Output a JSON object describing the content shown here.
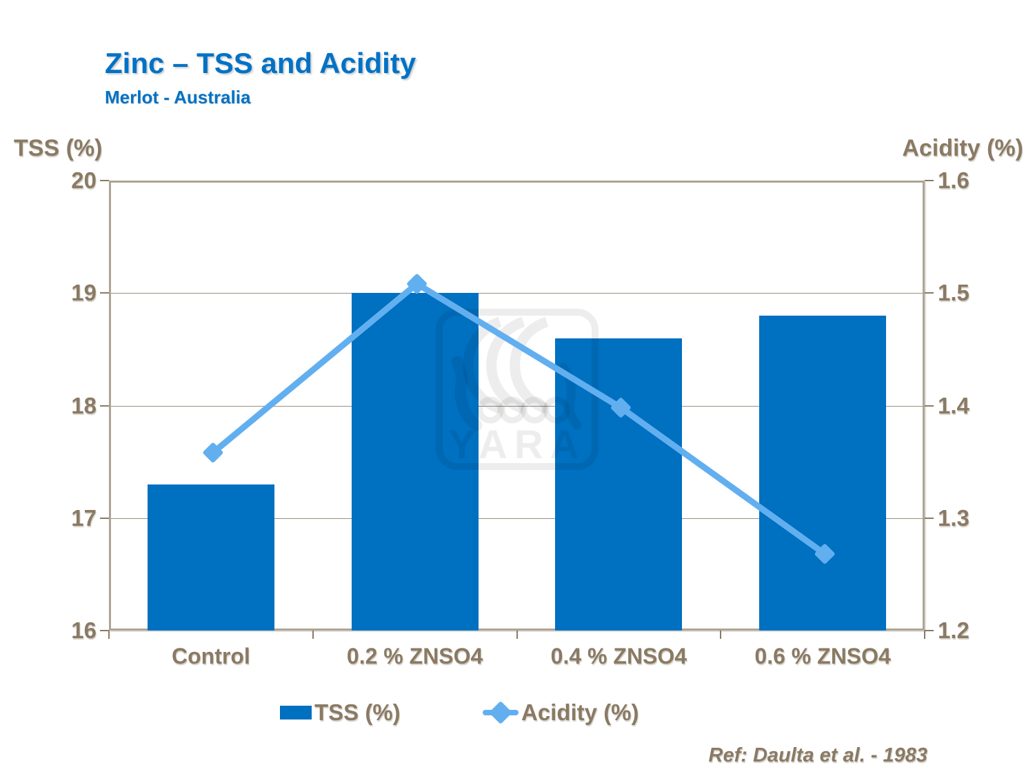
{
  "title": "Zinc – TSS and Acidity",
  "subtitle": "Merlot - Australia",
  "reference": "Ref: Daulta et al. - 1983",
  "watermark": {
    "text": "YARA",
    "icon": "yara-viking-ship-logo"
  },
  "colors": {
    "title_blue": "#0072C6",
    "bar_blue": "#0070C0",
    "line_blue": "#62AFF0",
    "label_taupe": "#8A7A64",
    "frame_taupe": "#ADA396"
  },
  "legend": [
    {
      "label": "TSS (%)",
      "marker": "blue-bar-swatch"
    },
    {
      "label": "Acidity (%)",
      "marker": "lightblue-line-diamond"
    }
  ],
  "chart_data": {
    "type": "combo",
    "categories": [
      "Control",
      "0.2 % ZNSO4",
      "0.4 % ZNSO4",
      "0.6 % ZNSO4"
    ],
    "series": [
      {
        "name": "TSS (%)",
        "type": "bar",
        "axis": "left",
        "values": [
          17.3,
          19.0,
          18.6,
          18.8
        ]
      },
      {
        "name": "Acidity (%)",
        "type": "line",
        "axis": "right",
        "values": [
          1.36,
          1.51,
          1.4,
          1.27
        ]
      }
    ],
    "left_axis": {
      "label": "TSS (%)",
      "min": 16,
      "max": 20,
      "ticks": [
        "20",
        "19",
        "18",
        "17",
        "16"
      ]
    },
    "right_axis": {
      "label": "Acidity (%)",
      "min": 1.2,
      "max": 1.6,
      "ticks": [
        "1.6",
        "1.5",
        "1.4",
        "1.3",
        "1.2"
      ]
    },
    "grid": true,
    "legend_position": "bottom"
  }
}
